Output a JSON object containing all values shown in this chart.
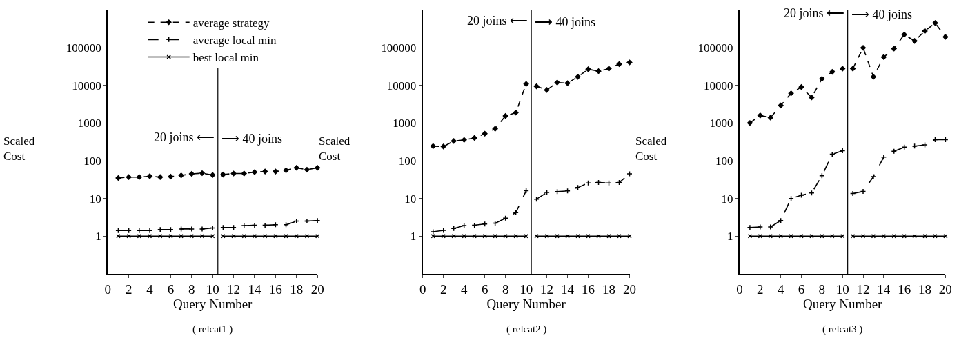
{
  "chart_data": [
    {
      "type": "line",
      "xlabel": "Query Number",
      "ylabel": "Scaled Cost",
      "annotations": [
        "20 joins ⟵",
        "⟶ 40 joins",
        "( relcat1 )"
      ],
      "log": "y",
      "legend": "top",
      "x": [
        1,
        2,
        3,
        4,
        5,
        6,
        7,
        8,
        9,
        10,
        10.5,
        11,
        12,
        13,
        14,
        15,
        16,
        17,
        18,
        19,
        20
      ],
      "series": [
        {
          "name": "average strategy",
          "color": "#000000",
          "marker": "diamond",
          "line_style": "dotted",
          "values": [
            35,
            37,
            37,
            39,
            37,
            38,
            41,
            45,
            47,
            42,
            null,
            43,
            46,
            46,
            50,
            52,
            52,
            56,
            65,
            58,
            65
          ]
        },
        {
          "name": "average local min",
          "color": "#000000",
          "marker": "cross",
          "line_style": "dashed",
          "values": [
            1.4,
            1.4,
            1.4,
            1.4,
            1.5,
            1.5,
            1.55,
            1.55,
            1.55,
            1.65,
            null,
            1.7,
            1.7,
            1.9,
            1.95,
            1.95,
            2.0,
            2.0,
            2.5,
            2.5,
            2.6
          ]
        },
        {
          "name": "best local min",
          "color": "#000000",
          "marker": "x",
          "line_style": "solid",
          "values": [
            1,
            1,
            1,
            1,
            1,
            1,
            1,
            1,
            1,
            1,
            null,
            1,
            1,
            1,
            1,
            1,
            1,
            1,
            1,
            1,
            1
          ]
        }
      ],
      "xlim": [
        0,
        20
      ],
      "xticks": [
        0,
        2,
        4,
        6,
        8,
        10,
        12,
        14,
        16,
        18,
        20
      ],
      "ylim": [
        0.1,
        1000000
      ],
      "yticks": [
        1,
        10,
        100,
        1000,
        10000,
        100000
      ],
      "ref_lines": [
        {
          "axis": "x",
          "value": 10.5,
          "label": null
        }
      ]
    },
    {
      "type": "line",
      "xlabel": "Query Number",
      "ylabel": "Scaled Cost",
      "annotations": [
        "20 joins ⟵",
        "⟶ 40 joins",
        "( relcat2 )"
      ],
      "log": "y",
      "x": [
        1,
        2,
        3,
        4,
        5,
        6,
        7,
        8,
        9,
        10,
        10.5,
        11,
        12,
        13,
        14,
        15,
        16,
        17,
        18,
        19,
        20
      ],
      "series": [
        {
          "color": "#000000",
          "marker": "diamond",
          "line_style": "dotted",
          "values": [
            245,
            240,
            335,
            360,
            405,
            525,
            710,
            1550,
            1900,
            11000,
            null,
            9500,
            7600,
            12000,
            11500,
            17000,
            27000,
            24000,
            28000,
            37000,
            41000
          ]
        },
        {
          "color": "#000000",
          "marker": "cross",
          "line_style": "dashed",
          "values": [
            1.3,
            1.42,
            1.6,
            1.9,
            1.95,
            2.1,
            2.2,
            3.0,
            4.2,
            16,
            null,
            9.6,
            14.4,
            15.2,
            15.8,
            19.5,
            25.8,
            26.5,
            25.8,
            26.5,
            45
          ]
        },
        {
          "color": "#000000",
          "marker": "x",
          "line_style": "solid",
          "values": [
            1,
            1,
            1,
            1,
            1,
            1,
            1,
            1,
            1,
            1,
            null,
            1,
            1,
            1,
            1,
            1,
            1,
            1,
            1,
            1,
            1
          ]
        }
      ],
      "xlim": [
        0,
        20
      ],
      "xticks": [
        0,
        2,
        4,
        6,
        8,
        10,
        12,
        14,
        16,
        18,
        20
      ],
      "ylim": [
        0.1,
        1000000
      ],
      "yticks": [
        1,
        10,
        100,
        1000,
        10000,
        100000
      ],
      "ref_lines": [
        {
          "axis": "x",
          "value": 10.5,
          "label": null
        }
      ]
    },
    {
      "type": "line",
      "xlabel": "Query Number",
      "ylabel": "Scaled Cost",
      "annotations": [
        "20 joins ⟵",
        "⟶ 40 joins",
        "( relcat3 )"
      ],
      "log": "y",
      "x": [
        1,
        2,
        3,
        4,
        5,
        6,
        7,
        8,
        9,
        10,
        10.5,
        11,
        12,
        13,
        14,
        15,
        16,
        17,
        18,
        19,
        20
      ],
      "series": [
        {
          "color": "#000000",
          "marker": "diamond",
          "line_style": "dotted",
          "values": [
            1010,
            1600,
            1400,
            2950,
            6200,
            9100,
            4800,
            15000,
            23000,
            28000,
            null,
            28000,
            100000,
            17000,
            57000,
            95000,
            225000,
            152000,
            280000,
            455000,
            195000
          ]
        },
        {
          "color": "#000000",
          "marker": "cross",
          "line_style": "dashed",
          "values": [
            1.7,
            1.75,
            1.75,
            2.6,
            10,
            12.2,
            14,
            40,
            150,
            185,
            null,
            13.5,
            15.3,
            38,
            125,
            180,
            230,
            245,
            265,
            365,
            365
          ]
        },
        {
          "color": "#000000",
          "marker": "x",
          "line_style": "solid",
          "values": [
            1,
            1,
            1,
            1,
            1,
            1,
            1,
            1,
            1,
            1,
            null,
            1,
            1,
            1,
            1,
            1,
            1,
            1,
            1,
            1,
            1
          ]
        }
      ],
      "xlim": [
        0,
        20
      ],
      "xticks": [
        0,
        2,
        4,
        6,
        8,
        10,
        12,
        14,
        16,
        18,
        20
      ],
      "ylim": [
        0.1,
        1000000
      ],
      "yticks": [
        1,
        10,
        100,
        1000,
        10000,
        100000
      ],
      "ref_lines": [
        {
          "axis": "x",
          "value": 10.5,
          "label": null
        }
      ]
    }
  ]
}
